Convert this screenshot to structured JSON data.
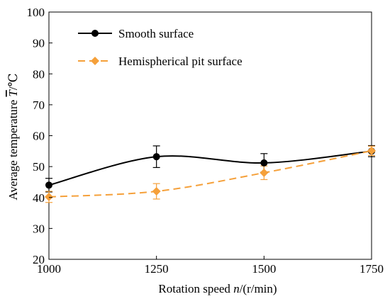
{
  "chart_data": {
    "type": "line",
    "x": [
      1000,
      1250,
      1500,
      1750
    ],
    "xlim": [
      1000,
      1750
    ],
    "ylim": [
      20,
      100
    ],
    "xticks": [
      1000,
      1250,
      1500,
      1750
    ],
    "yticks": [
      20,
      30,
      40,
      50,
      60,
      70,
      80,
      90,
      100
    ],
    "xlabel": {
      "prefix": "Rotation speed ",
      "var": "n",
      "suffix": "/(r/min)"
    },
    "ylabel": {
      "prefix": "Average temperature ",
      "var": "T",
      "suffix": "/℃"
    },
    "grid": false,
    "legend_position": "top-left",
    "series": [
      {
        "name": "Smooth surface",
        "color": "#000000",
        "marker": "circle",
        "line_style": "solid",
        "values": [
          44,
          53.2,
          51.2,
          55
        ],
        "errors": [
          2.2,
          3.5,
          3,
          1.8
        ]
      },
      {
        "name": "Hemispherical pit surface",
        "color": "#F5A03A",
        "marker": "diamond",
        "line_style": "dashed",
        "values": [
          40.2,
          42,
          48,
          55.1
        ],
        "errors": [
          1.8,
          2.5,
          2.2,
          1.5
        ]
      }
    ]
  }
}
